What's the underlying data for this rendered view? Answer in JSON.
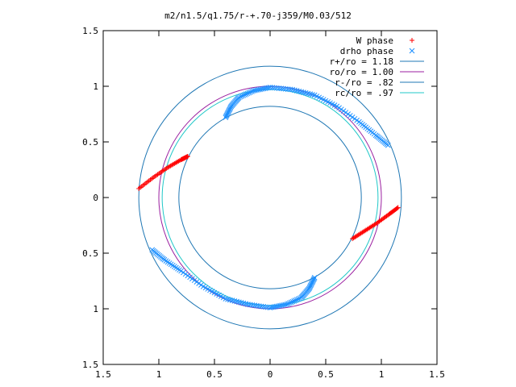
{
  "chart_data": {
    "type": "scatter",
    "title": "m2/n1.5/q1.75/r-+.70-j359/M0.03/512",
    "xlim": [
      -1.5,
      1.5
    ],
    "ylim": [
      -1.5,
      1.5
    ],
    "x_ticks": [
      -1.5,
      -1,
      -0.5,
      0,
      0.5,
      1,
      1.5
    ],
    "x_tick_labels": [
      "1.5",
      "1",
      "0.5",
      "0",
      "0.5",
      "1",
      "1.5"
    ],
    "y_ticks": [
      1.5,
      1,
      0.5,
      0,
      -0.5,
      -1,
      -1.5
    ],
    "y_tick_labels": [
      "1.5",
      "1",
      "0.5",
      "0",
      "0.5",
      "1",
      "1.5"
    ],
    "grid": false,
    "legend": "top-right",
    "circles": [
      {
        "name": "r+/ro = 1.18",
        "radius": 1.18,
        "color": "#1f77b4"
      },
      {
        "name": "ro/ro = 1.00",
        "radius": 1.0,
        "color": "#9b1fa0"
      },
      {
        "name": "r-/ro = .82",
        "radius": 0.82,
        "color": "#1f77b4"
      },
      {
        "name": "rc/ro = .97",
        "radius": 0.97,
        "color": "#20c8c8"
      }
    ],
    "series": [
      {
        "name": "W phase",
        "marker": "plus",
        "color": "#ff0000",
        "arcs": [
          {
            "x": [
              -1.18,
              -1.05,
              -0.92,
              -0.8,
              -0.74
            ],
            "y": [
              0.08,
              0.18,
              0.27,
              0.34,
              0.37
            ]
          },
          {
            "x": [
              0.74,
              0.85,
              0.96,
              1.07,
              1.15
            ],
            "y": [
              -0.37,
              -0.3,
              -0.23,
              -0.15,
              -0.09
            ]
          }
        ]
      },
      {
        "name": "drho phase",
        "marker": "cross",
        "color": "#1e90ff",
        "arcs": [
          {
            "x": [
              -0.4,
              -0.35,
              -0.28,
              -0.15,
              0.0,
              0.2,
              0.4,
              0.6,
              0.8,
              0.95,
              1.06
            ],
            "y": [
              0.72,
              0.82,
              0.9,
              0.96,
              0.99,
              0.97,
              0.92,
              0.82,
              0.68,
              0.56,
              0.47
            ]
          },
          {
            "x": [
              -1.06,
              -0.95,
              -0.8,
              -0.6,
              -0.4,
              -0.2,
              0.0,
              0.15,
              0.28,
              0.35,
              0.4
            ],
            "y": [
              -0.47,
              -0.56,
              -0.66,
              -0.8,
              -0.91,
              -0.96,
              -0.99,
              -0.96,
              -0.9,
              -0.82,
              -0.72
            ]
          }
        ]
      }
    ]
  }
}
